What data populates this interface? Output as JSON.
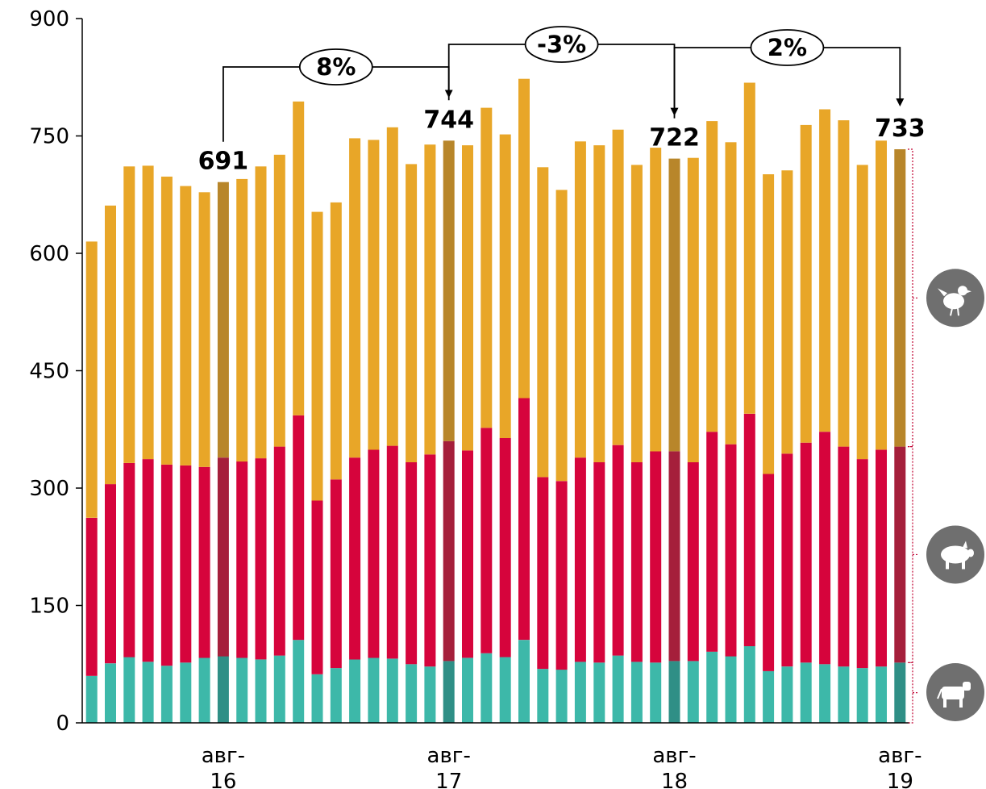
{
  "chart_data": {
    "type": "bar",
    "stacked": true,
    "ylim": [
      0,
      900
    ],
    "yticks": [
      0,
      150,
      300,
      450,
      600,
      750,
      900
    ],
    "grid": false,
    "xtick_labels": [
      {
        "index": 7,
        "lines": [
          "авг-",
          "16"
        ]
      },
      {
        "index": 19,
        "lines": [
          "авг-",
          "17"
        ]
      },
      {
        "index": 31,
        "lines": [
          "авг-",
          "18"
        ]
      },
      {
        "index": 43,
        "lines": [
          "авг-",
          "19"
        ]
      }
    ],
    "highlight_indices": [
      7,
      19,
      31,
      43
    ],
    "data_labels": [
      {
        "index": 7,
        "text": "691"
      },
      {
        "index": 19,
        "text": "744"
      },
      {
        "index": 31,
        "text": "722"
      },
      {
        "index": 43,
        "text": "733"
      }
    ],
    "changes": [
      {
        "from": 7,
        "to": 19,
        "text": "8%"
      },
      {
        "from": 19,
        "to": 31,
        "text": "-3%"
      },
      {
        "from": 31,
        "to": 43,
        "text": "2%"
      }
    ],
    "series": [
      {
        "icon": "cow-icon",
        "color": "#3db8a9",
        "highlight_color": "#2f8f86",
        "values": [
          60,
          76,
          84,
          78,
          73,
          77,
          83,
          85,
          83,
          81,
          86,
          106,
          62,
          70,
          81,
          83,
          82,
          75,
          72,
          79,
          83,
          89,
          84,
          106,
          69,
          68,
          78,
          77,
          86,
          78,
          77,
          79,
          79,
          91,
          85,
          98,
          66,
          72,
          77,
          75,
          72,
          70,
          72,
          77
        ]
      },
      {
        "icon": "pig-icon",
        "color": "#d6043c",
        "highlight_color": "#a51f3b",
        "values": [
          202,
          229,
          248,
          259,
          257,
          252,
          244,
          254,
          251,
          257,
          267,
          287,
          222,
          241,
          258,
          266,
          272,
          258,
          271,
          281,
          265,
          288,
          280,
          309,
          245,
          241,
          261,
          256,
          269,
          255,
          270,
          268,
          254,
          281,
          271,
          297,
          252,
          272,
          281,
          297,
          281,
          267,
          277,
          276
        ]
      },
      {
        "icon": "chicken-icon",
        "color": "#e8a628",
        "highlight_color": "#b8862a",
        "values": [
          353,
          356,
          379,
          375,
          368,
          357,
          351,
          352,
          361,
          373,
          373,
          401,
          369,
          354,
          408,
          396,
          407,
          381,
          396,
          384,
          390,
          409,
          388,
          408,
          396,
          372,
          404,
          405,
          403,
          380,
          388,
          374,
          389,
          397,
          386,
          423,
          383,
          362,
          406,
          412,
          417,
          376,
          395,
          380
        ]
      }
    ]
  }
}
